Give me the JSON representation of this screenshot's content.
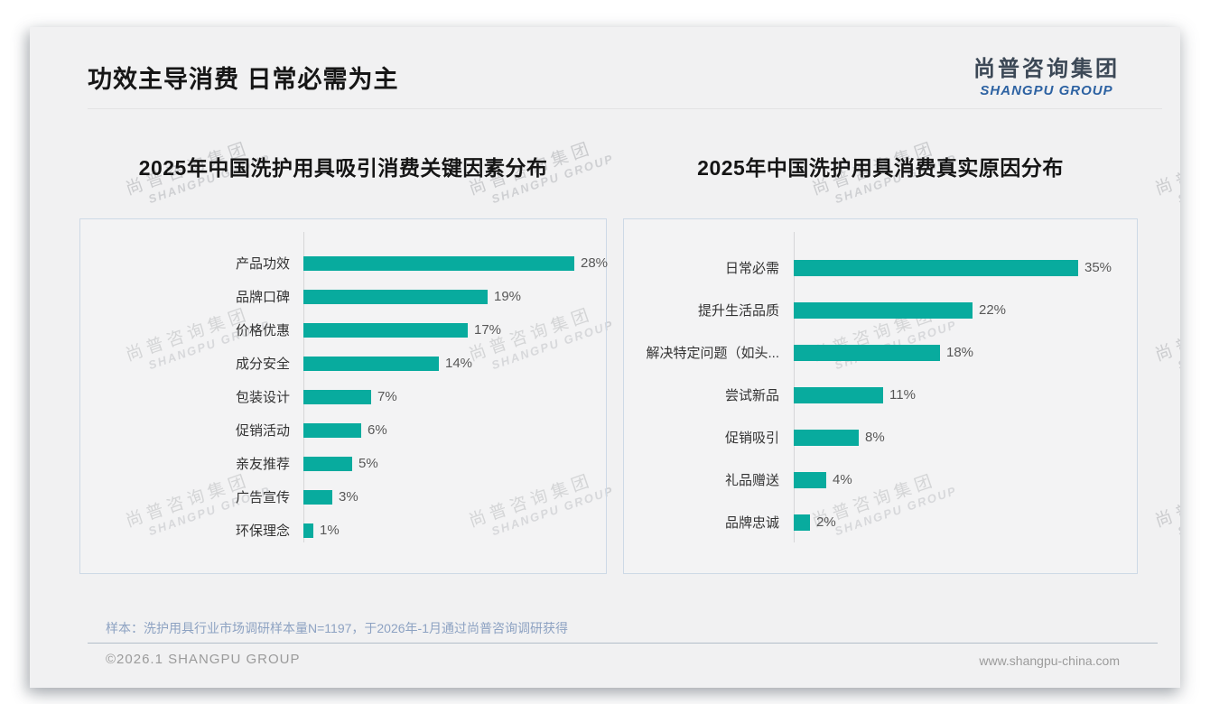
{
  "slide": {
    "title": "功效主导消费 日常必需为主",
    "logo": {
      "cn": "尚普咨询集团",
      "en": "SHANGPU GROUP"
    },
    "watermark": {
      "cn": "尚普咨询集团",
      "en": "SHANGPU GROUP"
    },
    "sample_note": "样本：洗护用具行业市场调研样本量N=1197，于2026年-1月通过尚普咨询调研获得",
    "footer": {
      "copyright": "©2026.1 SHANGPU GROUP",
      "website": "www.shangpu-china.com"
    }
  },
  "colors": {
    "bar": "#08ab9e",
    "logo_blue": "#2d62a2",
    "slide_background": "#f1f1f2",
    "panel_border": "#cdd9e6"
  },
  "chart_data": [
    {
      "type": "bar",
      "orientation": "horizontal",
      "title": "2025年中国洗护用具吸引消费关键因素分布",
      "categories": [
        "产品功效",
        "品牌口碑",
        "价格优惠",
        "成分安全",
        "包装设计",
        "促销活动",
        "亲友推荐",
        "广告宣传",
        "环保理念"
      ],
      "values": [
        28,
        19,
        17,
        14,
        7,
        6,
        5,
        3,
        1
      ],
      "unit": "%",
      "xlabel": "",
      "ylabel": "",
      "grid": false,
      "legend": false,
      "value_labels_shown": true,
      "bar_color": "#08ab9e"
    },
    {
      "type": "bar",
      "orientation": "horizontal",
      "title": "2025年中国洗护用具消费真实原因分布",
      "categories": [
        "日常必需",
        "提升生活品质",
        "解决特定问题（如头...",
        "尝试新品",
        "促销吸引",
        "礼品赠送",
        "品牌忠诚"
      ],
      "values": [
        35,
        22,
        18,
        11,
        8,
        4,
        2
      ],
      "unit": "%",
      "xlabel": "",
      "ylabel": "",
      "grid": false,
      "legend": false,
      "value_labels_shown": true,
      "bar_color": "#08ab9e"
    }
  ]
}
